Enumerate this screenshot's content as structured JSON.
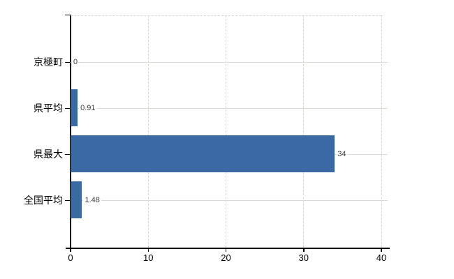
{
  "chart_data": {
    "type": "bar",
    "orientation": "horizontal",
    "title": "",
    "xlabel": "",
    "ylabel": "",
    "categories": [
      "京極町",
      "県平均",
      "県最大",
      "全国平均"
    ],
    "values": [
      0,
      0.91,
      34,
      1.48
    ],
    "value_labels": [
      "0",
      "0.91",
      "34",
      "1.48"
    ],
    "x_ticks": [
      0,
      10,
      20,
      30,
      40
    ],
    "x_tick_labels": [
      "0",
      "10",
      "20",
      "30",
      "40"
    ],
    "xlim": [
      0,
      40
    ],
    "grid": "vertical-dashed-and-horizontal-category-lines",
    "legend": "none",
    "colors": {
      "bar": "#3b69a4",
      "grid": "#d4d8cf",
      "category_line": "#dadcd4",
      "axis": "#000000",
      "value_label": "#3c3c3c",
      "background": "#ffffff"
    }
  }
}
